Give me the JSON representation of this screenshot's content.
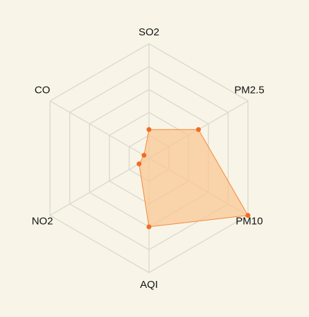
{
  "chart_data": {
    "type": "radar",
    "title": "",
    "indicators": [
      {
        "name": "SO2",
        "max": 100
      },
      {
        "name": "PM2.5",
        "max": 100
      },
      {
        "name": "PM10",
        "max": 100
      },
      {
        "name": "AQI",
        "max": 100
      },
      {
        "name": "NO2",
        "max": 100
      },
      {
        "name": "CO",
        "max": 100
      }
    ],
    "series": [
      {
        "values": [
          25,
          50,
          100,
          60,
          10,
          5
        ]
      }
    ],
    "rings": 5,
    "legend": "none",
    "colors": {
      "fill": "#f9c795",
      "line": "#f5883a",
      "point": "#f06d20",
      "grid": "#dddad0",
      "text": "#111111",
      "background": "#f8f5e8"
    }
  }
}
